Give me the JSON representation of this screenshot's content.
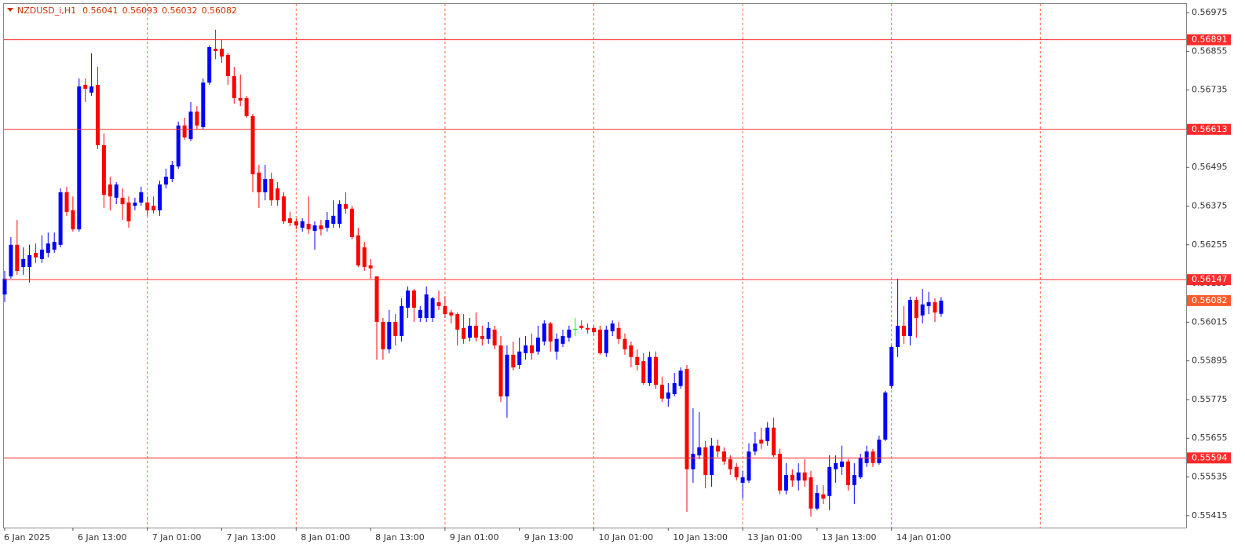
{
  "chart_data": {
    "type": "candlestick",
    "title": "NZDUSD_i,H1",
    "colors": {
      "bull": "#0000ff",
      "bear": "#ff0000",
      "doji": "#00ff00",
      "level": "#ff2a2a",
      "current": "#ff5a2a",
      "separator": "#ff6a3a"
    },
    "grid": true,
    "ylim": [
      0.55378,
      0.57002
    ],
    "yticks": [
      0.56975,
      0.56855,
      0.56735,
      0.56615,
      0.56495,
      0.56375,
      0.56255,
      0.56135,
      0.56015,
      0.55895,
      0.55775,
      0.55655,
      0.55535,
      0.55415
    ],
    "levels": [
      0.56891,
      0.56613,
      0.56147,
      0.55594
    ],
    "categories": [
      "6 Jan 2025",
      null,
      null,
      null,
      null,
      null,
      null,
      null,
      null,
      null,
      null,
      "6 Jan 13:00",
      null,
      null,
      null,
      null,
      null,
      null,
      null,
      null,
      null,
      null,
      null,
      "7 Jan 01:00",
      null,
      null,
      null,
      null,
      null,
      null,
      null,
      null,
      null,
      null,
      null,
      "7 Jan 13:00",
      null,
      null,
      null,
      null,
      null,
      null,
      null,
      null,
      null,
      null,
      null,
      "8 Jan 01:00",
      null,
      null,
      null,
      null,
      null,
      null,
      null,
      null,
      null,
      null,
      null,
      "8 Jan 13:00",
      null,
      null,
      null,
      null,
      null,
      null,
      null,
      null,
      null,
      null,
      null,
      "9 Jan 01:00",
      null,
      null,
      null,
      null,
      null,
      null,
      null,
      null,
      null,
      null,
      null,
      "9 Jan 13:00",
      null,
      null,
      null,
      null,
      null,
      null,
      null,
      null,
      null,
      null,
      null,
      "10 Jan 01:00",
      null,
      null,
      null,
      null,
      null,
      null,
      null,
      null,
      null,
      null,
      null,
      "10 Jan 13:00",
      null,
      null,
      null,
      null,
      null,
      null,
      null,
      null,
      null,
      null,
      null,
      "13 Jan 01:00",
      null,
      null,
      null,
      null,
      null,
      null,
      null,
      null,
      null,
      null,
      null,
      "13 Jan 13:00",
      null,
      null,
      null,
      null,
      null,
      null,
      null,
      null,
      null,
      null,
      null,
      "14 Jan 01:00",
      null,
      null,
      null,
      null,
      null,
      null,
      null,
      null
    ],
    "ohlc": [
      [
        0.56101,
        0.56174,
        0.56077,
        0.5615
      ],
      [
        0.56157,
        0.56279,
        0.5615,
        0.56255
      ],
      [
        0.56255,
        0.56332,
        0.56162,
        0.56174
      ],
      [
        0.56186,
        0.56247,
        0.56162,
        0.56211
      ],
      [
        0.56186,
        0.56255,
        0.56138,
        0.56223
      ],
      [
        0.5623,
        0.56259,
        0.56199,
        0.56216
      ],
      [
        0.56211,
        0.56284,
        0.56199,
        0.5624
      ],
      [
        0.5623,
        0.56293,
        0.56216,
        0.56259
      ],
      [
        0.5624,
        0.56293,
        0.5623,
        0.56264
      ],
      [
        0.56255,
        0.5643,
        0.56247,
        0.56418
      ],
      [
        0.56418,
        0.56435,
        0.56345,
        0.56357
      ],
      [
        0.56362,
        0.56405,
        0.56296,
        0.56303
      ],
      [
        0.56303,
        0.56771,
        0.56296,
        0.56746
      ],
      [
        0.56751,
        0.56771,
        0.56698,
        0.56739
      ],
      [
        0.56727,
        0.56849,
        0.56717,
        0.56746
      ],
      [
        0.56751,
        0.56807,
        0.56552,
        0.56564
      ],
      [
        0.56564,
        0.566,
        0.56369,
        0.5641
      ],
      [
        0.56442,
        0.56466,
        0.56362,
        0.56405
      ],
      [
        0.56401,
        0.56449,
        0.56381,
        0.56442
      ],
      [
        0.56401,
        0.5643,
        0.56332,
        0.56381
      ],
      [
        0.56386,
        0.56405,
        0.56308,
        0.56328
      ],
      [
        0.56376,
        0.56401,
        0.56362,
        0.56386
      ],
      [
        0.56386,
        0.56435,
        0.56376,
        0.56418
      ],
      [
        0.56386,
        0.56405,
        0.56345,
        0.56362
      ],
      [
        0.56376,
        0.56405,
        0.56352,
        0.56362
      ],
      [
        0.56362,
        0.56454,
        0.56345,
        0.56442
      ],
      [
        0.56442,
        0.56491,
        0.5643,
        0.56466
      ],
      [
        0.56459,
        0.56515,
        0.56449,
        0.56503
      ],
      [
        0.56498,
        0.56637,
        0.56491,
        0.56625
      ],
      [
        0.56625,
        0.56649,
        0.56581,
        0.56588
      ],
      [
        0.56583,
        0.56698,
        0.56576,
        0.56668
      ],
      [
        0.56668,
        0.56685,
        0.56612,
        0.56625
      ],
      [
        0.5662,
        0.56771,
        0.56612,
        0.56758
      ],
      [
        0.56758,
        0.56873,
        0.56751,
        0.56868
      ],
      [
        0.56863,
        0.56922,
        0.56831,
        0.56856
      ],
      [
        0.56863,
        0.56892,
        0.56819,
        0.56839
      ],
      [
        0.56844,
        0.56849,
        0.56751,
        0.56778
      ],
      [
        0.56778,
        0.56807,
        0.56693,
        0.5671
      ],
      [
        0.5671,
        0.56783,
        0.56685,
        0.56702
      ],
      [
        0.5671,
        0.56717,
        0.56649,
        0.56654
      ],
      [
        0.56654,
        0.56661,
        0.56418,
        0.56474
      ],
      [
        0.56479,
        0.56503,
        0.56369,
        0.56418
      ],
      [
        0.56418,
        0.56503,
        0.56393,
        0.56459
      ],
      [
        0.56459,
        0.56479,
        0.56376,
        0.56393
      ],
      [
        0.5643,
        0.56449,
        0.56376,
        0.56393
      ],
      [
        0.56405,
        0.56418,
        0.5632,
        0.56328
      ],
      [
        0.56337,
        0.56357,
        0.56313,
        0.56323
      ],
      [
        0.56328,
        0.56337,
        0.56303,
        0.56315
      ],
      [
        0.56308,
        0.56337,
        0.56296,
        0.56328
      ],
      [
        0.5632,
        0.56405,
        0.56289,
        0.56303
      ],
      [
        0.56298,
        0.56328,
        0.5624,
        0.56315
      ],
      [
        0.56315,
        0.56332,
        0.56284,
        0.56303
      ],
      [
        0.56308,
        0.56357,
        0.56296,
        0.56332
      ],
      [
        0.5632,
        0.56393,
        0.56308,
        0.56345
      ],
      [
        0.5632,
        0.56393,
        0.56308,
        0.56381
      ],
      [
        0.56381,
        0.56418,
        0.56352,
        0.56367
      ],
      [
        0.56367,
        0.56376,
        0.56272,
        0.56279
      ],
      [
        0.56284,
        0.56308,
        0.56186,
        0.56191
      ],
      [
        0.56247,
        0.56264,
        0.56174,
        0.56186
      ],
      [
        0.56191,
        0.56211,
        0.5615,
        0.56182
      ],
      [
        0.56157,
        0.56157,
        0.55899,
        0.56016
      ],
      [
        0.56016,
        0.56028,
        0.55899,
        0.55931
      ],
      [
        0.55931,
        0.56053,
        0.55919,
        0.56016
      ],
      [
        0.56016,
        0.5604,
        0.55943,
        0.55972
      ],
      [
        0.55972,
        0.56089,
        0.55955,
        0.56065
      ],
      [
        0.5606,
        0.56126,
        0.56028,
        0.56113
      ],
      [
        0.56113,
        0.56118,
        0.56016,
        0.5606
      ],
      [
        0.56028,
        0.56065,
        0.56016,
        0.56053
      ],
      [
        0.56028,
        0.56126,
        0.56016,
        0.56101
      ],
      [
        0.56028,
        0.56094,
        0.56016,
        0.56089
      ],
      [
        0.56077,
        0.56113,
        0.56053,
        0.56065
      ],
      [
        0.56065,
        0.56094,
        0.56028,
        0.5604
      ],
      [
        0.56045,
        0.56053,
        0.56011,
        0.56036
      ],
      [
        0.5604,
        0.56045,
        0.55943,
        0.55992
      ],
      [
        0.55997,
        0.5604,
        0.55948,
        0.55963
      ],
      [
        0.55967,
        0.56028,
        0.55955,
        0.56004
      ],
      [
        0.56004,
        0.56045,
        0.55955,
        0.55967
      ],
      [
        0.55972,
        0.56004,
        0.55943,
        0.55963
      ],
      [
        0.55963,
        0.56016,
        0.55948,
        0.55997
      ],
      [
        0.55992,
        0.56004,
        0.55931,
        0.55943
      ],
      [
        0.55943,
        0.55972,
        0.55768,
        0.55785
      ],
      [
        0.55785,
        0.55943,
        0.55719,
        0.55914
      ],
      [
        0.55914,
        0.55955,
        0.55865,
        0.55875
      ],
      [
        0.55882,
        0.55967,
        0.5587,
        0.55924
      ],
      [
        0.55919,
        0.55972,
        0.55899,
        0.55943
      ],
      [
        0.55943,
        0.5598,
        0.55899,
        0.55919
      ],
      [
        0.55924,
        0.56004,
        0.55914,
        0.55967
      ],
      [
        0.55955,
        0.56021,
        0.55943,
        0.56011
      ],
      [
        0.56011,
        0.56016,
        0.55924,
        0.55955
      ],
      [
        0.55924,
        0.5598,
        0.55899,
        0.55963
      ],
      [
        0.55948,
        0.55992,
        0.55938,
        0.55972
      ],
      [
        0.55967,
        0.56004,
        0.55955,
        0.55992
      ],
      [
        0.55994,
        0.56028,
        0.55972,
        0.55994
      ],
      [
        0.56004,
        0.56021,
        0.55992,
        0.55997
      ],
      [
        0.55997,
        0.56011,
        0.5598,
        0.55992
      ],
      [
        0.55997,
        0.56004,
        0.55972,
        0.55984
      ],
      [
        0.55992,
        0.56004,
        0.55914,
        0.55919
      ],
      [
        0.55919,
        0.56004,
        0.55907,
        0.55992
      ],
      [
        0.55987,
        0.56021,
        0.55972,
        0.56011
      ],
      [
        0.55997,
        0.56016,
        0.55948,
        0.55963
      ],
      [
        0.55963,
        0.5598,
        0.55914,
        0.55931
      ],
      [
        0.55943,
        0.55955,
        0.55875,
        0.55907
      ],
      [
        0.55907,
        0.55931,
        0.55865,
        0.55882
      ],
      [
        0.55894,
        0.55919,
        0.55821,
        0.55826
      ],
      [
        0.55826,
        0.55924,
        0.55817,
        0.55907
      ],
      [
        0.55907,
        0.55924,
        0.55809,
        0.55821
      ],
      [
        0.55821,
        0.55846,
        0.55768,
        0.55778
      ],
      [
        0.55778,
        0.55826,
        0.55753,
        0.55797
      ],
      [
        0.55792,
        0.55858,
        0.55785,
        0.55826
      ],
      [
        0.55817,
        0.55875,
        0.55809,
        0.55865
      ],
      [
        0.5587,
        0.55882,
        0.55427,
        0.55559
      ],
      [
        0.55559,
        0.55748,
        0.55517,
        0.55607
      ],
      [
        0.55602,
        0.55736,
        0.5559,
        0.55627
      ],
      [
        0.55627,
        0.55646,
        0.555,
        0.55541
      ],
      [
        0.55541,
        0.55656,
        0.55505,
        0.55632
      ],
      [
        0.55632,
        0.55651,
        0.55597,
        0.55614
      ],
      [
        0.55614,
        0.55627,
        0.55573,
        0.55583
      ],
      [
        0.5559,
        0.55602,
        0.55541,
        0.55559
      ],
      [
        0.55566,
        0.55578,
        0.55524,
        0.55534
      ],
      [
        0.55517,
        0.55554,
        0.55468,
        0.55534
      ],
      [
        0.55524,
        0.55639,
        0.55517,
        0.55614
      ],
      [
        0.55614,
        0.55675,
        0.55602,
        0.55639
      ],
      [
        0.55651,
        0.55688,
        0.55622,
        0.55639
      ],
      [
        0.55646,
        0.55705,
        0.55632,
        0.55688
      ],
      [
        0.55688,
        0.55719,
        0.55597,
        0.55602
      ],
      [
        0.55607,
        0.55622,
        0.55481,
        0.55493
      ],
      [
        0.55493,
        0.55578,
        0.55481,
        0.55541
      ],
      [
        0.55541,
        0.55559,
        0.55505,
        0.55524
      ],
      [
        0.55524,
        0.55578,
        0.55493,
        0.55549
      ],
      [
        0.55549,
        0.5559,
        0.55505,
        0.55524
      ],
      [
        0.55534,
        0.55554,
        0.55412,
        0.55437
      ],
      [
        0.55437,
        0.5551,
        0.55432,
        0.55485
      ],
      [
        0.55481,
        0.5551,
        0.55451,
        0.55468
      ],
      [
        0.55476,
        0.55602,
        0.55432,
        0.55566
      ],
      [
        0.55559,
        0.55602,
        0.55517,
        0.55578
      ],
      [
        0.55566,
        0.55632,
        0.55541,
        0.55583
      ],
      [
        0.55583,
        0.5559,
        0.55493,
        0.5551
      ],
      [
        0.5551,
        0.55578,
        0.55451,
        0.55541
      ],
      [
        0.55534,
        0.55607,
        0.55529,
        0.55595
      ],
      [
        0.55578,
        0.55632,
        0.55566,
        0.55614
      ],
      [
        0.55614,
        0.55622,
        0.55566,
        0.55578
      ],
      [
        0.55578,
        0.55663,
        0.55573,
        0.55651
      ],
      [
        0.55651,
        0.55802,
        0.55646,
        0.55797
      ],
      [
        0.55817,
        0.55943,
        0.55809,
        0.55938
      ],
      [
        0.55938,
        0.5615,
        0.55907,
        0.56004
      ],
      [
        0.56004,
        0.56065,
        0.55948,
        0.55972
      ],
      [
        0.55972,
        0.56094,
        0.55943,
        0.56084
      ],
      [
        0.56084,
        0.56094,
        0.55967,
        0.56028
      ],
      [
        0.56036,
        0.56118,
        0.56011,
        0.5607
      ],
      [
        0.56065,
        0.56109,
        0.5604,
        0.56077
      ],
      [
        0.56077,
        0.56089,
        0.56016,
        0.56045
      ],
      [
        0.56041,
        0.56093,
        0.56032,
        0.56082
      ]
    ]
  }
}
